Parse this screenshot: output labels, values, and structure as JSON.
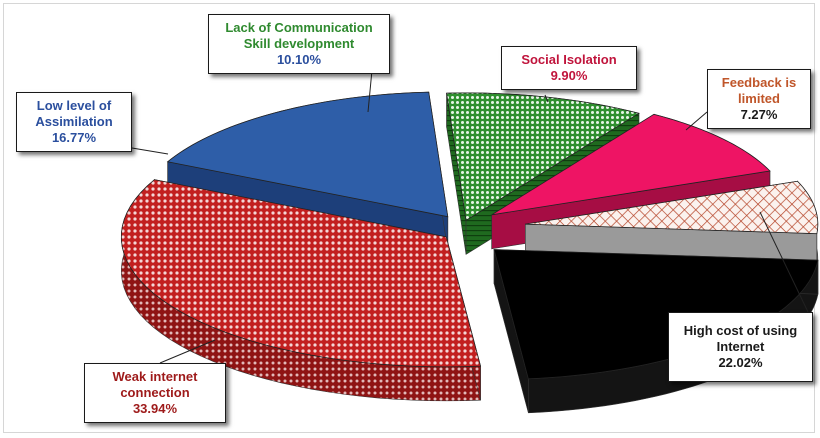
{
  "chart_data": {
    "type": "pie",
    "style": "exploded 3D pie with callout labels",
    "slices": [
      {
        "label": "Lack of Communication Skill development",
        "value": 10.1,
        "value_text": "10.10%",
        "color": "#3f9e3f",
        "label_color": "#2f8a2f",
        "pattern": "dotted-grid"
      },
      {
        "label": "Social Isolation",
        "value": 9.9,
        "value_text": "9.90%",
        "color": "#ee1464",
        "label_color": "#c0143c",
        "pattern": "solid"
      },
      {
        "label": "Feedback is limited",
        "value": 7.27,
        "value_text": "7.27%",
        "color": "#b8442a",
        "label_color": "#c0562a",
        "pattern": "crosshatch"
      },
      {
        "label": "High cost of using Internet",
        "value": 22.02,
        "value_text": "22.02%",
        "color": "#000000",
        "label_color": "#1a1a1a",
        "pattern": "solid"
      },
      {
        "label": "Weak internet connection",
        "value": 33.94,
        "value_text": "33.94%",
        "color": "#c21f1f",
        "label_color": "#9e1a1a",
        "pattern": "dotted"
      },
      {
        "label": "Low level of Assimilation",
        "value": 16.77,
        "value_text": "16.77%",
        "color": "#2e5ea8",
        "label_color": "#2b4f9e",
        "pattern": "solid"
      }
    ],
    "legend": "none",
    "title": ""
  },
  "callouts": [
    {
      "lines": [
        "Lack of Communication",
        "Skill development"
      ],
      "pct": "10.10%"
    },
    {
      "lines": [
        "Social Isolation"
      ],
      "pct": "9.90%"
    },
    {
      "lines": [
        "Feedback is",
        "limited"
      ],
      "pct": "7.27%"
    },
    {
      "lines": [
        "High cost of using",
        "Internet"
      ],
      "pct": "22.02%"
    },
    {
      "lines": [
        "Weak internet",
        "connection"
      ],
      "pct": "33.94%"
    },
    {
      "lines": [
        "Low level of",
        "Assimilation"
      ],
      "pct": "16.77%"
    }
  ]
}
